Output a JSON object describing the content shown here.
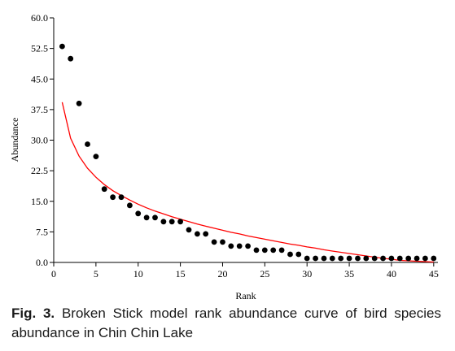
{
  "caption": {
    "label": "Fig. 3.",
    "text": "Broken Stick model rank abundance curve of bird species abundance in Chin Chin Lake"
  },
  "chart_data": {
    "type": "scatter",
    "title": "",
    "xlabel": "Rank",
    "ylabel": "Abundance",
    "xlim": [
      0,
      45.5
    ],
    "ylim": [
      0,
      60
    ],
    "x_ticks": [
      0,
      5,
      10,
      15,
      20,
      25,
      30,
      35,
      40,
      45
    ],
    "y_ticks": [
      "0.0",
      "7.5",
      "15.0",
      "22.5",
      "30.0",
      "37.5",
      "45.0",
      "52.5",
      "60.0"
    ],
    "grid": false,
    "legend": "none",
    "colors": {
      "points": "#000000",
      "model_line": "#ff0000"
    },
    "series": [
      {
        "kind": "points",
        "x": [
          1,
          2,
          3,
          4,
          5,
          6,
          7,
          8,
          9,
          10,
          11,
          12,
          13,
          14,
          15,
          16,
          17,
          18,
          19,
          20,
          21,
          22,
          23,
          24,
          25,
          26,
          27,
          28,
          29,
          30,
          31,
          32,
          33,
          34,
          35,
          36,
          37,
          38,
          39,
          40,
          41,
          42,
          43,
          44,
          45
        ],
        "y": [
          53,
          50,
          39,
          29,
          26,
          18,
          16,
          16,
          14,
          12,
          11,
          11,
          10,
          10,
          10,
          8,
          7,
          7,
          5,
          5,
          4,
          4,
          4,
          3,
          3,
          3,
          3,
          2,
          2,
          1,
          1,
          1,
          1,
          1,
          1,
          1,
          1,
          1,
          1,
          1,
          1,
          1,
          1,
          1,
          1
        ]
      },
      {
        "kind": "line",
        "x": [
          1,
          2,
          3,
          4,
          5,
          6,
          7,
          8,
          9,
          10,
          11,
          12,
          13,
          14,
          15,
          16,
          17,
          18,
          19,
          20,
          21,
          22,
          23,
          24,
          25,
          26,
          27,
          28,
          29,
          30,
          31,
          32,
          33,
          34,
          35,
          36,
          37,
          38,
          39,
          40,
          41,
          42,
          43,
          44,
          45
        ],
        "y": [
          39.3,
          30.5,
          26.1,
          23.1,
          20.9,
          19.1,
          17.6,
          16.4,
          15.3,
          14.3,
          13.4,
          12.6,
          11.9,
          11.2,
          10.6,
          10.0,
          9.4,
          8.9,
          8.4,
          7.9,
          7.4,
          7.0,
          6.5,
          6.1,
          5.7,
          5.3,
          4.9,
          4.5,
          4.2,
          3.8,
          3.5,
          3.1,
          2.8,
          2.5,
          2.2,
          1.9,
          1.6,
          1.3,
          1.0,
          0.8,
          0.5,
          0.4,
          0.3,
          0.2,
          0.1
        ]
      }
    ]
  }
}
